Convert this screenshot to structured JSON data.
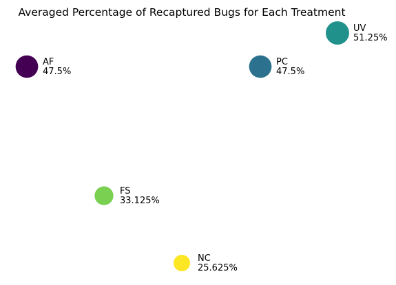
{
  "chart_data": {
    "type": "scatter",
    "title": "Averaged Percentage of Recaptured Bugs for Each Treatment",
    "xlabel": "",
    "ylabel": "",
    "axes_visible": false,
    "grid": false,
    "legend": "none",
    "series": [
      {
        "points": [
          {
            "label": "AF",
            "value": 47.5,
            "value_label": "47.5%",
            "color": "#440154"
          },
          {
            "label": "PC",
            "value": 47.5,
            "value_label": "47.5%",
            "color": "#2c728e"
          },
          {
            "label": "UV",
            "value": 51.25,
            "value_label": "51.25%",
            "color": "#21918c"
          },
          {
            "label": "FS",
            "value": 33.125,
            "value_label": "33.125%",
            "color": "#7ad151"
          },
          {
            "label": "NC",
            "value": 25.625,
            "value_label": "25.625%",
            "color": "#fde725"
          }
        ]
      }
    ]
  }
}
